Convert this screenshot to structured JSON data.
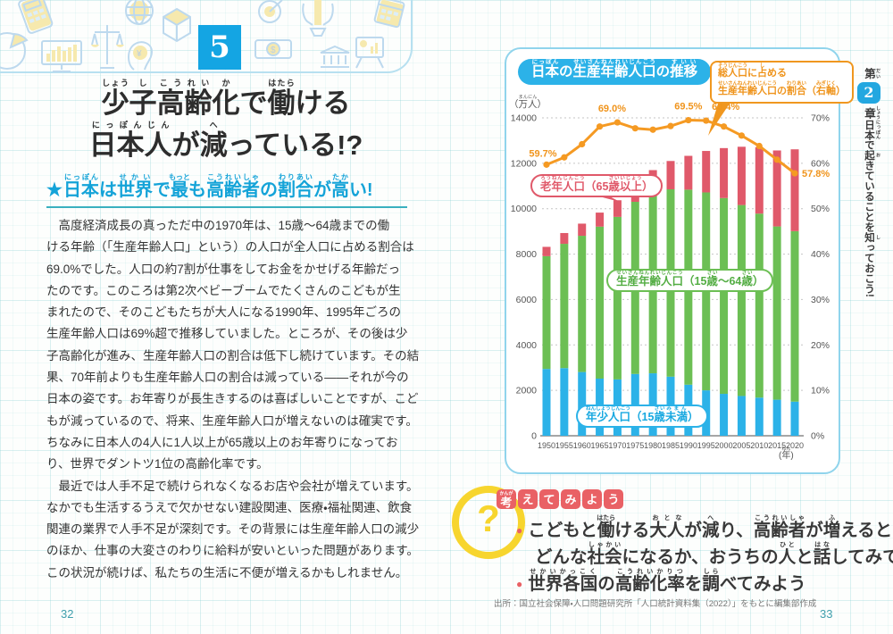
{
  "page": {
    "left_page_number": "32",
    "right_page_number": "33",
    "section_number": "5"
  },
  "band_icons": [
    "calculator-icon",
    "pie-chart-icon",
    "bar-chart-monitor-icon",
    "scales-icon",
    "globe-icon",
    "head-yen-icon",
    "cube-icon",
    "target-icon",
    "money-icon",
    "hands-pencil-icon",
    "bank-icon",
    "easel-chart-icon",
    "calendar-icon"
  ],
  "left": {
    "star": "★",
    "title_line1": [
      {
        "t": "少",
        "r": "しょう"
      },
      {
        "t": "子",
        "r": "し"
      },
      {
        "t": "高",
        "r": "こう"
      },
      {
        "t": "齢",
        "r": "れい"
      },
      {
        "t": "化",
        "r": "か"
      },
      {
        "t": "で"
      },
      {
        "t": "働",
        "r": "はたら"
      },
      {
        "t": "ける"
      }
    ],
    "title_line2": [
      {
        "t": "日",
        "r": "にっ"
      },
      {
        "t": "本",
        "r": "ぽん"
      },
      {
        "t": "人",
        "r": "じん"
      },
      {
        "t": "が"
      },
      {
        "t": "減",
        "r": "へ"
      },
      {
        "t": "っている!?"
      }
    ],
    "subtitle": [
      {
        "t": "日本",
        "r": "にっぽん"
      },
      {
        "t": "は"
      },
      {
        "t": "世界",
        "r": "せかい"
      },
      {
        "t": "で"
      },
      {
        "t": "最",
        "r": "もっと"
      },
      {
        "t": "も"
      },
      {
        "t": "高齢者",
        "r": "こうれいしゃ"
      },
      {
        "t": "の"
      },
      {
        "t": "割合",
        "r": "わりあい"
      },
      {
        "t": "が"
      },
      {
        "t": "高",
        "r": "たか"
      },
      {
        "t": "い!"
      }
    ],
    "body_lines": [
      "　高度経済成長の真っただ中の1970年は、15歳〜64歳までの働",
      "ける年齢（「生産年齢人口」という）の人口が全人口に占める割合は",
      "69.0%でした。人口の約7割が仕事をしてお金をかせげる年齢だっ",
      "たのです。このころは第2次ベビーブームでたくさんのこどもが生",
      "まれたので、そのこどもたちが大人になる1990年、1995年ごろの",
      "生産年齢人口は69%超で推移していました。ところが、その後は少",
      "子高齢化が進み、生産年齢人口の割合は低下し続けています。その結",
      "果、70年前よりも生産年齢人口の割合は減っている——それが今の",
      "日本の姿です。お年寄りが長生きするのは喜ばしいことですが、こど",
      "もが減っているので、将来、生産年齢人口が増えないのは確実です。",
      "ちなみに日本人の4人に1人以上が65歳以上のお年寄りになってお",
      "り、世界でダントツ1位の高齢化率です。",
      "　最近では人手不足で続けられなくなるお店や会社が増えています。",
      "なかでも生活するうえで欠かせない建設関連、医療・福祉関連、飲食",
      "関連の業界で人手不足が深刻です。その背景には生産年齢人口の減少",
      "のほか、仕事の大変さのわりに給料が安いといった問題があります。",
      "この状況が続けば、私たちの生活に不便が増えるかもしれません。"
    ]
  },
  "chart": {
    "title": [
      {
        "t": "日本",
        "r": "にっぽん"
      },
      {
        "t": "の"
      },
      {
        "t": "生産",
        "r": "せいさん"
      },
      {
        "t": "年齢",
        "r": "ねんれい"
      },
      {
        "t": "人口",
        "r": "じんこう"
      },
      {
        "t": "の"
      },
      {
        "t": "推移",
        "r": "すいい"
      }
    ],
    "legend_line1": [
      {
        "t": "総人口",
        "r": "そうじんこう"
      },
      {
        "t": "に"
      },
      {
        "t": "占",
        "r": "し"
      },
      {
        "t": "める"
      }
    ],
    "legend_line2": [
      {
        "t": "生産年齢人口",
        "r": "せいさんねんれいじんこう"
      },
      {
        "t": "の"
      },
      {
        "t": "割合",
        "r": "わりあい"
      },
      {
        "t": "（"
      },
      {
        "t": "右軸",
        "r": "みぎじく"
      },
      {
        "t": "）"
      }
    ],
    "unit_label": [
      {
        "t": "（"
      },
      {
        "t": "万人",
        "r": "まんにん"
      },
      {
        "t": "）"
      }
    ],
    "year_label": [
      {
        "t": "("
      },
      {
        "t": "年",
        "r": "ねん"
      },
      {
        "t": ")"
      }
    ],
    "elderly_label": [
      {
        "t": "老年人口",
        "r": "ろうねんじんこう"
      },
      {
        "t": "（65"
      },
      {
        "t": "歳",
        "r": "さい"
      },
      {
        "t": "以上",
        "r": "いじょう"
      },
      {
        "t": "）"
      }
    ],
    "working_label": [
      {
        "t": "生産年齢人口",
        "r": "せいさんねんれいじんこう"
      },
      {
        "t": "（15"
      },
      {
        "t": "歳",
        "r": "さい"
      },
      {
        "t": "〜64"
      },
      {
        "t": "歳",
        "r": "さい"
      },
      {
        "t": "）"
      }
    ],
    "junior_label": [
      {
        "t": "年少人口",
        "r": "ねんしょうじんこう"
      },
      {
        "t": "（15"
      },
      {
        "t": "歳",
        "r": "さい"
      },
      {
        "t": "未満",
        "r": "みまん"
      },
      {
        "t": "）"
      }
    ]
  },
  "chart_data": {
    "type": "bar",
    "subtype": "stacked-bar-with-line",
    "title": "日本の生産年齢人口の推移",
    "unit_left": "万人",
    "categories": [
      "1950",
      "1955",
      "1960",
      "1965",
      "1970",
      "1975",
      "1980",
      "1985",
      "1990",
      "1995",
      "2000",
      "2005",
      "2010",
      "2015",
      "2020"
    ],
    "xlabel": "年",
    "ylim_left": [
      0,
      14000
    ],
    "left_tick_step": 2000,
    "ylim_right_percent": [
      0,
      70
    ],
    "right_tick_step_percent": 10,
    "grid": "dotted-horizontal",
    "series": [
      {
        "name": "年少人口（15歳未満）",
        "color": "#2cb2e8",
        "values": [
          2943,
          2980,
          2807,
          2517,
          2482,
          2722,
          2751,
          2603,
          2249,
          2001,
          1847,
          1752,
          1680,
          1589,
          1503
        ]
      },
      {
        "name": "生産年齢人口（15歳〜64歳）",
        "color": "#6cbf54",
        "values": [
          4966,
          5473,
          6000,
          6693,
          7157,
          7581,
          7883,
          8251,
          8590,
          8716,
          8622,
          8409,
          8103,
          7629,
          7509
        ]
      },
      {
        "name": "老年人口（65歳以上）",
        "color": "#e0596a",
        "values": [
          411,
          475,
          535,
          618,
          733,
          887,
          1065,
          1247,
          1489,
          1826,
          2200,
          2567,
          2925,
          3347,
          3603
        ]
      }
    ],
    "line": {
      "name": "総人口に占める生産年齢人口の割合（右軸）",
      "axis": "right",
      "color": "#f59a23",
      "values_percent": [
        59.7,
        61.3,
        64.2,
        68.1,
        69.0,
        67.7,
        67.4,
        68.2,
        69.5,
        69.4,
        68.1,
        66.1,
        63.8,
        60.8,
        57.8
      ],
      "point_labels": [
        {
          "index": 0,
          "text": "59.7%"
        },
        {
          "index": 4,
          "text": "69.0%"
        },
        {
          "index": 8,
          "text": "69.5%"
        },
        {
          "index": 9,
          "text": "69.4%"
        },
        {
          "index": 14,
          "text": "57.8%"
        }
      ]
    }
  },
  "think": {
    "question_mark": "?",
    "heading_chars": [
      {
        "t": "考",
        "r": "かんが"
      },
      {
        "t": "え"
      },
      {
        "t": "て"
      },
      {
        "t": "み"
      },
      {
        "t": "よ"
      },
      {
        "t": "う"
      }
    ],
    "bullet1_line1": [
      {
        "t": "こどもと"
      },
      {
        "t": "働",
        "r": "はたら"
      },
      {
        "t": "ける"
      },
      {
        "t": "大人",
        "r": "おとな"
      },
      {
        "t": "が"
      },
      {
        "t": "減",
        "r": "へ"
      },
      {
        "t": "り、"
      },
      {
        "t": "高齢者",
        "r": "こうれいしゃ"
      },
      {
        "t": "が"
      },
      {
        "t": "増",
        "r": "ふ"
      },
      {
        "t": "えると"
      }
    ],
    "bullet1_line2": [
      {
        "t": "どんな"
      },
      {
        "t": "社会",
        "r": "しゃかい"
      },
      {
        "t": "になるか、おうちの"
      },
      {
        "t": "人",
        "r": "ひと"
      },
      {
        "t": "と"
      },
      {
        "t": "話",
        "r": "はな"
      },
      {
        "t": "してみて!"
      }
    ],
    "bullet2": [
      {
        "t": "世界各国",
        "r": "せかいかっこく"
      },
      {
        "t": "の"
      },
      {
        "t": "高齢化率",
        "r": "こうれいかりつ"
      },
      {
        "t": "を"
      },
      {
        "t": "調",
        "r": "しら"
      },
      {
        "t": "べてみよう"
      }
    ],
    "source": "出所：国立社会保障・人口問題研究所「人口統計資料集（2022）」をもとに編集部作成"
  },
  "chapter": {
    "dai": [
      {
        "t": "第",
        "r": "だい"
      }
    ],
    "number": "2",
    "shou": [
      {
        "t": "章",
        "r": "しょう"
      }
    ],
    "sentence": [
      {
        "t": "日本",
        "r": "にっぽん"
      },
      {
        "t": "で"
      },
      {
        "t": "起",
        "r": "お"
      },
      {
        "t": "きていることを"
      },
      {
        "t": "知",
        "r": "し"
      },
      {
        "t": "っておこう!"
      }
    ]
  },
  "colors": {
    "accent_blue": "#2cb2e8",
    "accent_orange": "#f0971f",
    "bar_junior": "#2cb2e8",
    "bar_working": "#6cbf54",
    "bar_elderly": "#e0596a",
    "heading_red": "#e96165",
    "question_yellow": "#f7d52e",
    "underline_teal": "#3ab0bf"
  }
}
